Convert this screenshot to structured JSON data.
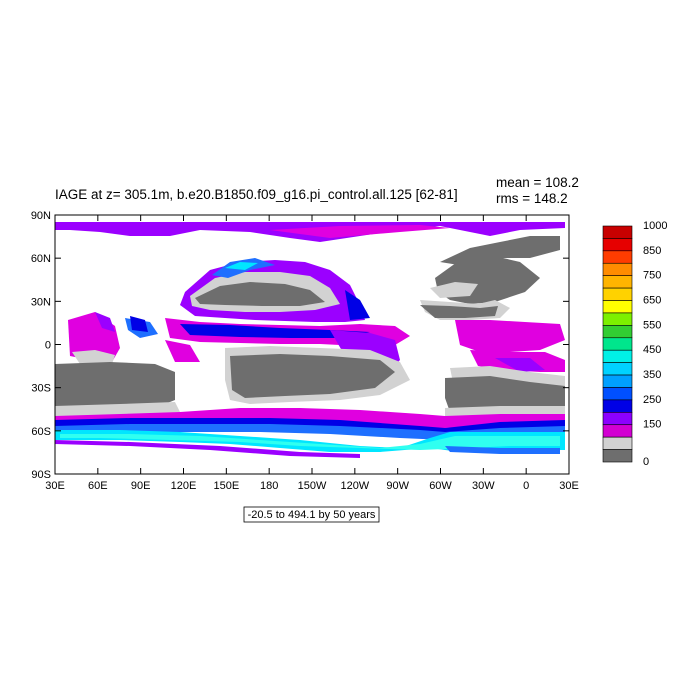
{
  "title": "IAGE at z= 305.1m, b.e20.B1850.f09_g16.pi_control.all.125 [62-81]",
  "stats": {
    "mean": "mean = 108.2",
    "rms": "rms = 148.2"
  },
  "range_label": "-20.5 to 494.1 by 50 years",
  "lon_ticks": [
    "30E",
    "60E",
    "90E",
    "120E",
    "150E",
    "180",
    "150W",
    "120W",
    "90W",
    "60W",
    "30W",
    "0",
    "30E"
  ],
  "lat_ticks": [
    "90N",
    "60N",
    "30N",
    "0",
    "30S",
    "60S",
    "90S"
  ],
  "colorbar": {
    "labels": [
      "1000",
      "850",
      "750",
      "650",
      "550",
      "450",
      "350",
      "250",
      "150",
      "0"
    ],
    "colors": [
      "#c80000",
      "#e60000",
      "#ff3c00",
      "#ff8c00",
      "#ffb400",
      "#ffd200",
      "#ffff00",
      "#7cf000",
      "#32cd32",
      "#00e68c",
      "#00f0e6",
      "#00d2ff",
      "#00a0ff",
      "#0050ff",
      "#0000e6",
      "#8c00ff",
      "#d200d2",
      "#d2d2d2",
      "#6e6e6e"
    ]
  },
  "legend_colors": {
    "land": "#ffffff",
    "young": "#6e6e6e",
    "light": "#d2d2d2",
    "magenta": "#e000e0",
    "purple": "#9b00ff",
    "blue": "#0000e6",
    "mid_blue": "#1e6fff",
    "cyan": "#00e6ff",
    "light_cyan": "#30fff0"
  }
}
